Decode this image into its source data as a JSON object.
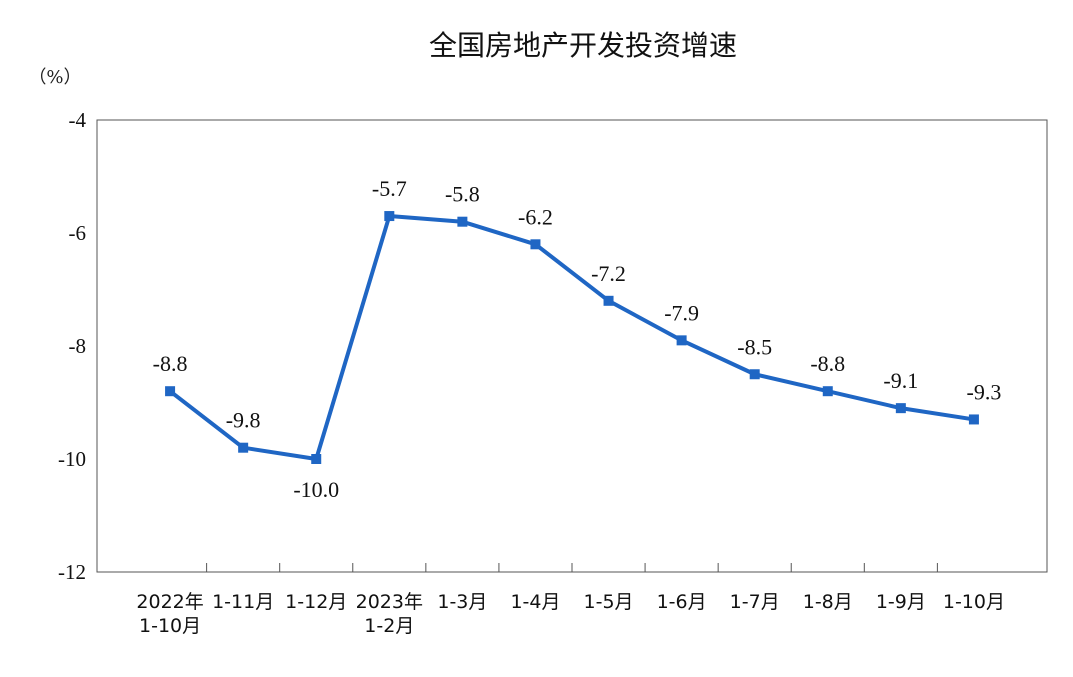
{
  "chart_data": {
    "type": "line",
    "title": "全国房地产开发投资增速",
    "ylabel": "（%）",
    "xlabel": "",
    "ylim": [
      -12,
      -4
    ],
    "yticks": [
      -4,
      -6,
      -8,
      -10,
      -12
    ],
    "grid": false,
    "legend": "none",
    "line_color": "#1f66c4",
    "categories": [
      [
        "2022年",
        "1-10月"
      ],
      [
        "1-11月"
      ],
      [
        "1-12月"
      ],
      [
        "2023年",
        "1-2月"
      ],
      [
        "1-3月"
      ],
      [
        "1-4月"
      ],
      [
        "1-5月"
      ],
      [
        "1-6月"
      ],
      [
        "1-7月"
      ],
      [
        "1-8月"
      ],
      [
        "1-9月"
      ],
      [
        "1-10月"
      ]
    ],
    "series": [
      {
        "values": [
          -8.8,
          -9.8,
          -10.0,
          -5.7,
          -5.8,
          -6.2,
          -7.2,
          -7.9,
          -8.5,
          -8.8,
          -9.1,
          -9.3
        ],
        "labels": [
          "-8.8",
          "-9.8",
          "-10.0",
          "-5.7",
          "-5.8",
          "-6.2",
          "-7.2",
          "-7.9",
          "-8.5",
          "-8.8",
          "-9.1",
          "-9.3"
        ]
      }
    ]
  }
}
